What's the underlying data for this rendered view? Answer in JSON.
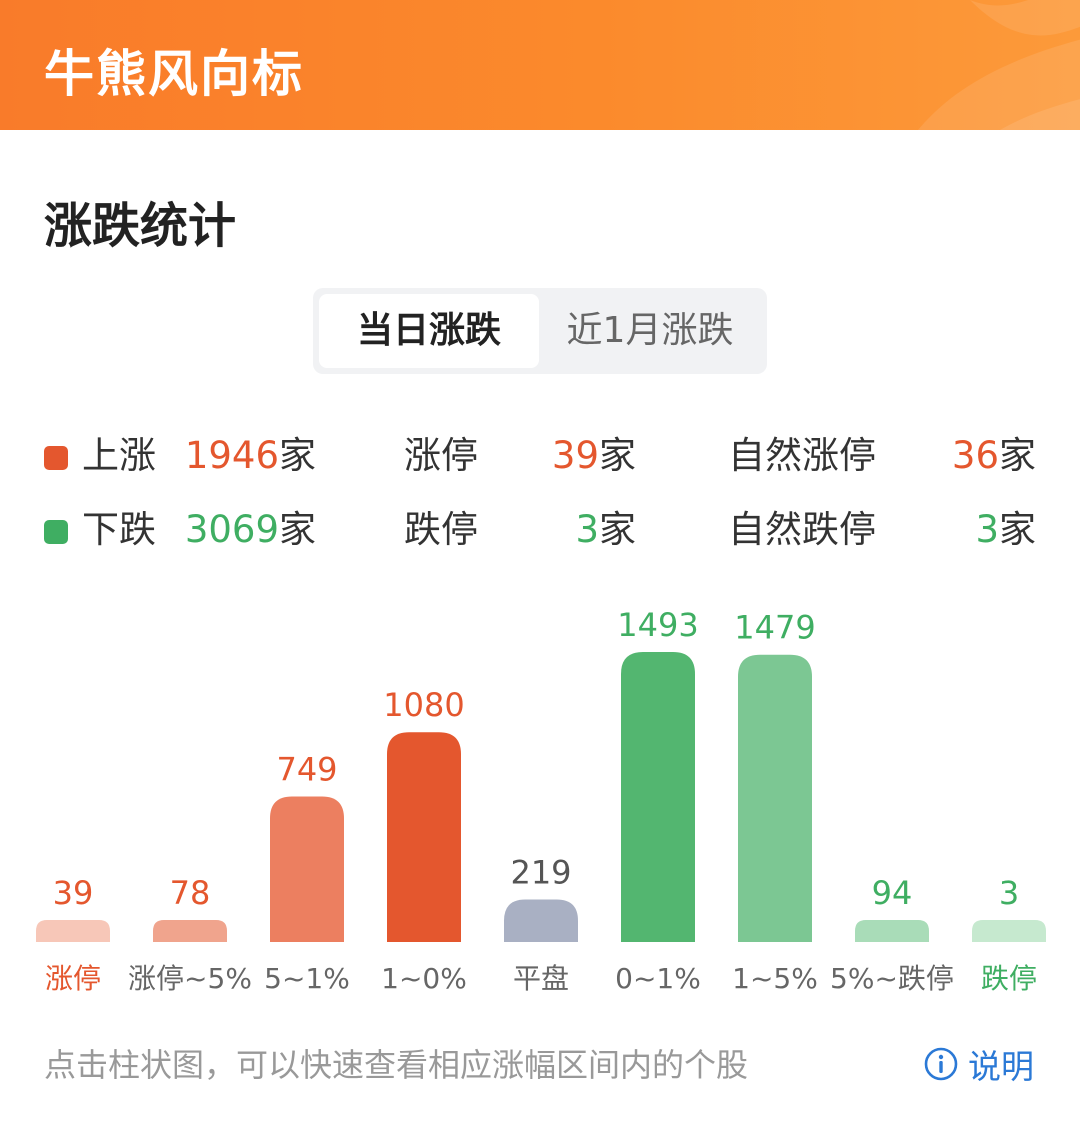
{
  "header": {
    "title": "牛熊风向标"
  },
  "section": {
    "title": "涨跌统计"
  },
  "tabs": [
    {
      "label": "当日涨跌"
    },
    {
      "label": "近1月涨跌"
    }
  ],
  "stats": {
    "up": {
      "label": "上涨",
      "count": "1946",
      "unit": "家",
      "limit_label": "涨停",
      "limit_count": "39",
      "limit_unit": "家",
      "natural_label": "自然涨停",
      "natural_count": "36",
      "natural_unit": "家"
    },
    "down": {
      "label": "下跌",
      "count": "3069",
      "unit": "家",
      "limit_label": "跌停",
      "limit_count": "3",
      "limit_unit": "家",
      "natural_label": "自然跌停",
      "natural_count": "3",
      "natural_unit": "家"
    }
  },
  "colors": {
    "up": "#e4572e",
    "down": "#3fae62",
    "flat": "#a9b0c3"
  },
  "chart_data": {
    "type": "bar",
    "categories": [
      "涨停",
      "涨停~5%",
      "5~1%",
      "1~0%",
      "平盘",
      "0~1%",
      "1~5%",
      "5%~跌停",
      "跌停"
    ],
    "values": [
      39,
      78,
      749,
      1080,
      219,
      1493,
      1479,
      94,
      3
    ],
    "bar_colors": [
      "#f7c7b8",
      "#f0a48d",
      "#ec7f60",
      "#e4572e",
      "#a9b0c3",
      "#53b670",
      "#7cc793",
      "#a9dcb8",
      "#c6e9cf"
    ],
    "value_colors": [
      "#e4572e",
      "#e4572e",
      "#e4572e",
      "#e4572e",
      "#555555",
      "#3fae62",
      "#3fae62",
      "#3fae62",
      "#3fae62"
    ],
    "label_colors": [
      "#e4572e",
      "#666666",
      "#666666",
      "#666666",
      "#666666",
      "#666666",
      "#666666",
      "#666666",
      "#3fae62"
    ]
  },
  "footer": {
    "hint": "点击柱状图，可以快速查看相应涨幅区间内的个股",
    "help_label": "说明",
    "help_icon": "info-icon"
  }
}
